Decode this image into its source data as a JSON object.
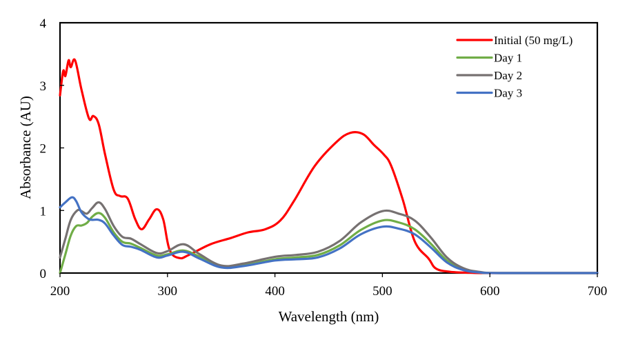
{
  "chart_data": {
    "type": "line",
    "title": "",
    "xlabel": "Wavelength (nm)",
    "ylabel": "Absorbance (AU)",
    "xlim": [
      200,
      700
    ],
    "ylim": [
      0,
      4
    ],
    "xticks": [
      200,
      300,
      400,
      500,
      600,
      700
    ],
    "yticks": [
      0,
      1,
      2,
      3,
      4
    ],
    "xtick_labels": [
      "200",
      "300",
      "400",
      "500",
      "600",
      "700"
    ],
    "ytick_labels": [
      "0",
      "1",
      "2",
      "3",
      "4"
    ],
    "grid": false,
    "legend_position": "top-right",
    "series": [
      {
        "name": "Initial (50 mg/L)",
        "color": "#ff0000",
        "x": [
          200,
          203,
          205,
          208,
          210,
          214,
          220,
          227,
          231,
          236,
          242,
          250,
          256,
          263,
          270,
          276,
          283,
          290,
          296,
          302,
          311,
          320,
          340,
          359,
          375,
          391,
          405,
          418,
          437,
          457,
          470,
          482,
          492,
          501,
          508,
          519,
          530,
          543,
          550,
          563,
          582,
          601,
          700
        ],
        "y": [
          2.84,
          3.23,
          3.15,
          3.4,
          3.29,
          3.4,
          2.93,
          2.47,
          2.51,
          2.38,
          1.89,
          1.33,
          1.23,
          1.19,
          0.86,
          0.7,
          0.86,
          1.02,
          0.86,
          0.37,
          0.24,
          0.29,
          0.46,
          0.56,
          0.65,
          0.7,
          0.84,
          1.16,
          1.71,
          2.09,
          2.24,
          2.22,
          2.05,
          1.9,
          1.72,
          1.17,
          0.51,
          0.23,
          0.07,
          0.02,
          0.005,
          0.0,
          0.0
        ]
      },
      {
        "name": "Day 1",
        "color": "#70ad47",
        "x": [
          200,
          205,
          210,
          215,
          220,
          225,
          230,
          236,
          242,
          250,
          258,
          266,
          275,
          290,
          300,
          315,
          330,
          350,
          370,
          400,
          420,
          440,
          460,
          480,
          500,
          515,
          530,
          545,
          560,
          575,
          590,
          610,
          700
        ],
        "y": [
          0.0,
          0.3,
          0.6,
          0.75,
          0.76,
          0.8,
          0.9,
          0.96,
          0.88,
          0.65,
          0.5,
          0.47,
          0.4,
          0.28,
          0.3,
          0.36,
          0.26,
          0.11,
          0.12,
          0.22,
          0.25,
          0.29,
          0.44,
          0.69,
          0.84,
          0.81,
          0.7,
          0.47,
          0.2,
          0.06,
          0.01,
          0.0,
          0.0
        ]
      },
      {
        "name": "Day 2",
        "color": "#767171",
        "x": [
          200,
          205,
          210,
          216,
          220,
          225,
          230,
          236,
          242,
          250,
          258,
          266,
          275,
          290,
          300,
          315,
          330,
          350,
          370,
          400,
          420,
          440,
          460,
          480,
          500,
          515,
          530,
          545,
          560,
          575,
          590,
          610,
          700
        ],
        "y": [
          0.25,
          0.55,
          0.85,
          1.0,
          0.99,
          0.95,
          1.04,
          1.13,
          1.02,
          0.75,
          0.58,
          0.55,
          0.46,
          0.32,
          0.35,
          0.46,
          0.3,
          0.12,
          0.15,
          0.26,
          0.29,
          0.34,
          0.51,
          0.81,
          0.99,
          0.95,
          0.84,
          0.57,
          0.25,
          0.08,
          0.02,
          0.0,
          0.0
        ]
      },
      {
        "name": "Day 3",
        "color": "#4472c4",
        "x": [
          200,
          205,
          211,
          215,
          220,
          226,
          230,
          236,
          242,
          250,
          258,
          266,
          275,
          290,
          300,
          315,
          330,
          350,
          370,
          400,
          420,
          440,
          460,
          480,
          500,
          515,
          530,
          545,
          560,
          575,
          590,
          610,
          700
        ],
        "y": [
          1.05,
          1.13,
          1.21,
          1.15,
          0.97,
          0.87,
          0.85,
          0.85,
          0.79,
          0.6,
          0.45,
          0.42,
          0.37,
          0.25,
          0.28,
          0.34,
          0.23,
          0.09,
          0.11,
          0.2,
          0.22,
          0.25,
          0.39,
          0.62,
          0.74,
          0.71,
          0.62,
          0.41,
          0.17,
          0.05,
          0.01,
          0.0,
          0.0
        ]
      }
    ]
  }
}
